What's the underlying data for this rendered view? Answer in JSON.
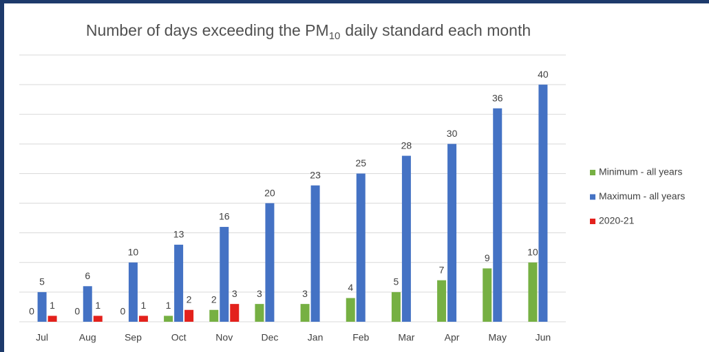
{
  "chart_data": {
    "type": "bar",
    "title_parts": [
      "Number of days exceeding the PM",
      "10",
      "daily standard each month"
    ],
    "categories": [
      "Jul",
      "Aug",
      "Sep",
      "Oct",
      "Nov",
      "Dec",
      "Jan",
      "Feb",
      "Mar",
      "Apr",
      "May",
      "Jun"
    ],
    "series": [
      {
        "name": "Minimum - all years",
        "color": "#76b043",
        "values": [
          0,
          0,
          0,
          1,
          2,
          3,
          3,
          4,
          5,
          7,
          9,
          10
        ]
      },
      {
        "name": "Maximum - all years",
        "color": "#4472c4",
        "values": [
          5,
          6,
          10,
          13,
          16,
          20,
          23,
          25,
          28,
          30,
          36,
          40
        ]
      },
      {
        "name": "2020-21",
        "color": "#e3211c",
        "values": [
          1,
          1,
          1,
          2,
          3,
          null,
          null,
          null,
          null,
          null,
          null,
          null
        ]
      }
    ],
    "ylim": [
      0,
      45
    ],
    "yticks": [
      0,
      5,
      10,
      15,
      20,
      25,
      30,
      35,
      40,
      45
    ],
    "grid": true,
    "legend": "right"
  }
}
